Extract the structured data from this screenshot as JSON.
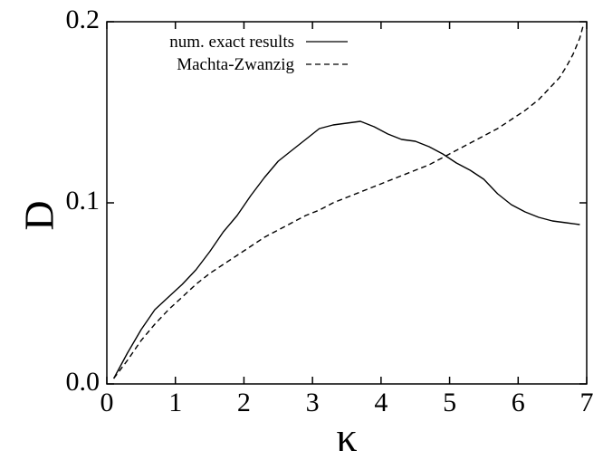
{
  "chart_data": {
    "type": "line",
    "xlabel": "κ",
    "ylabel": "D",
    "xlim": [
      0,
      7
    ],
    "ylim": [
      0,
      0.2
    ],
    "x_ticks": [
      "0",
      "1",
      "2",
      "3",
      "4",
      "5",
      "6",
      "7"
    ],
    "y_ticks": [
      "0.0",
      "0.1",
      "0.2"
    ],
    "legend_position": "top-left",
    "grid": false,
    "series": [
      {
        "name": "num. exact results",
        "style": "solid",
        "x": [
          0.1,
          0.3,
          0.5,
          0.7,
          0.9,
          1.1,
          1.3,
          1.5,
          1.7,
          1.9,
          2.1,
          2.3,
          2.5,
          2.7,
          2.9,
          3.1,
          3.3,
          3.5,
          3.7,
          3.9,
          4.1,
          4.3,
          4.5,
          4.7,
          4.9,
          5.1,
          5.3,
          5.5,
          5.7,
          5.9,
          6.1,
          6.3,
          6.5,
          6.7,
          6.9
        ],
        "values": [
          0.003,
          0.017,
          0.03,
          0.041,
          0.048,
          0.055,
          0.063,
          0.073,
          0.084,
          0.093,
          0.104,
          0.114,
          0.123,
          0.129,
          0.135,
          0.141,
          0.143,
          0.144,
          0.145,
          0.142,
          0.138,
          0.135,
          0.134,
          0.131,
          0.127,
          0.122,
          0.118,
          0.113,
          0.105,
          0.099,
          0.095,
          0.092,
          0.09,
          0.089,
          0.088
        ]
      },
      {
        "name": "Machta-Zwanzig",
        "style": "dashed",
        "x": [
          0.1,
          0.3,
          0.5,
          0.7,
          0.9,
          1.1,
          1.3,
          1.5,
          1.7,
          1.9,
          2.1,
          2.3,
          2.5,
          2.7,
          2.9,
          3.1,
          3.3,
          3.5,
          3.7,
          3.9,
          4.1,
          4.3,
          4.5,
          4.7,
          4.9,
          5.1,
          5.3,
          5.5,
          5.7,
          5.9,
          6.1,
          6.3,
          6.5,
          6.6,
          6.7,
          6.8,
          6.9,
          6.95
        ],
        "values": [
          0.003,
          0.013,
          0.024,
          0.033,
          0.041,
          0.048,
          0.055,
          0.061,
          0.066,
          0.071,
          0.076,
          0.081,
          0.085,
          0.089,
          0.093,
          0.096,
          0.1,
          0.103,
          0.106,
          0.109,
          0.112,
          0.115,
          0.118,
          0.121,
          0.125,
          0.129,
          0.133,
          0.137,
          0.141,
          0.146,
          0.151,
          0.157,
          0.165,
          0.169,
          0.175,
          0.182,
          0.191,
          0.198
        ]
      }
    ]
  }
}
